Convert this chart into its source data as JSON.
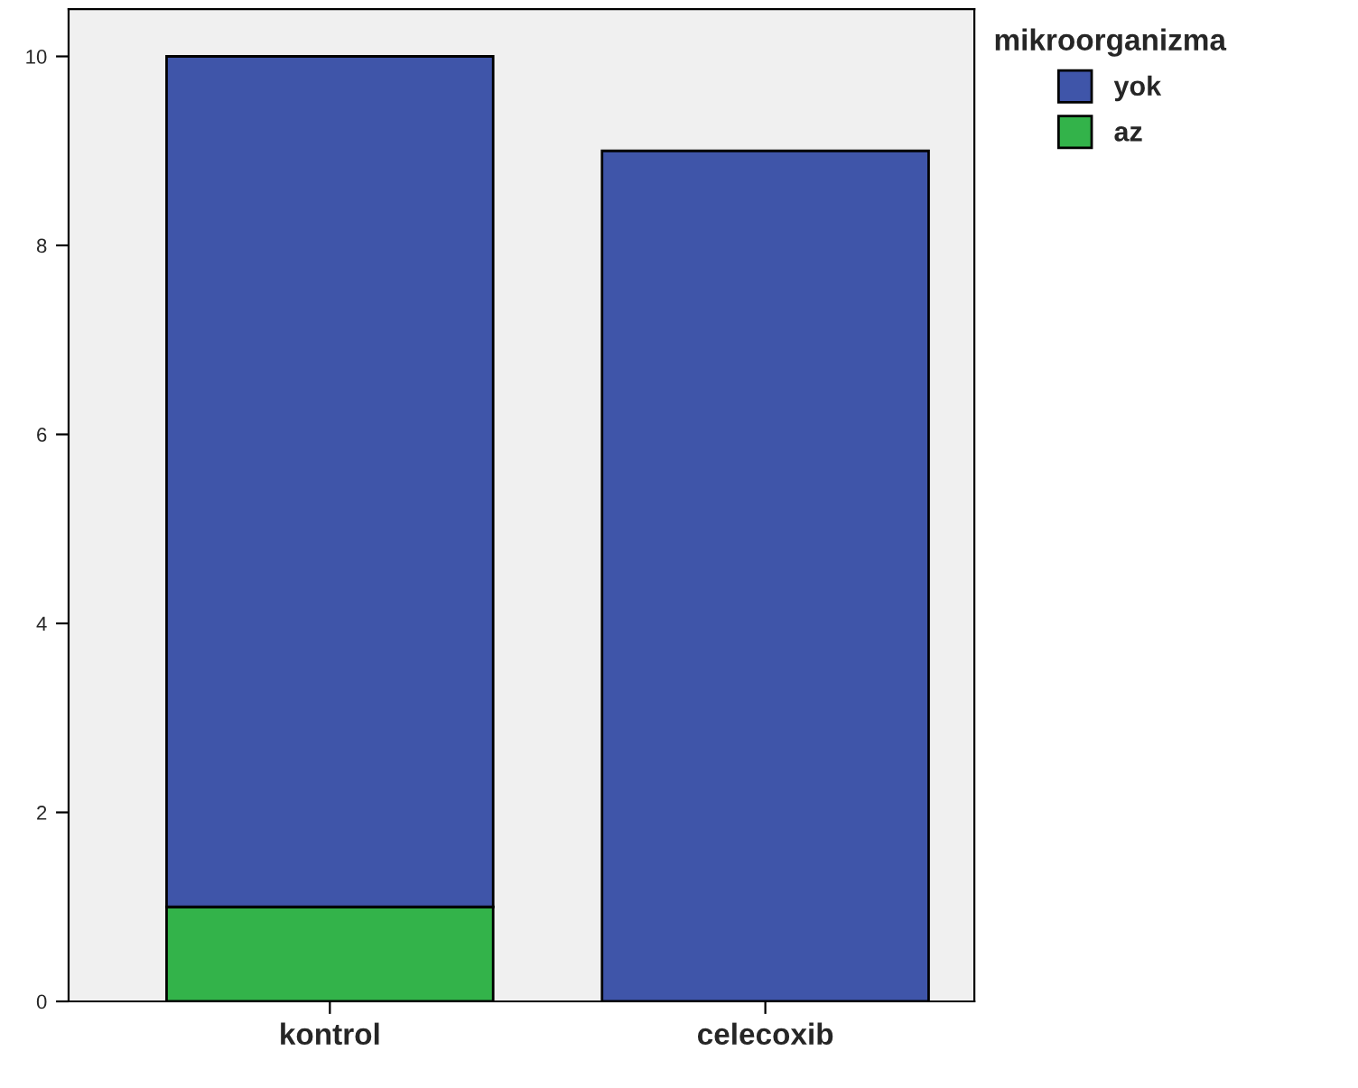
{
  "chart_data": {
    "type": "bar",
    "stacked": true,
    "legend_title": "mikroorganizma",
    "legend": "top right",
    "categories": [
      "kontrol",
      "celecoxib"
    ],
    "series": [
      {
        "name": "az",
        "color": "#33b34a",
        "values": [
          1,
          0
        ]
      },
      {
        "name": "yok",
        "color": "#3f55a9",
        "values": [
          9,
          9
        ]
      }
    ],
    "ylim": [
      0,
      10.5
    ],
    "yticks": [
      0,
      2,
      4,
      6,
      8,
      10
    ],
    "grid": false
  }
}
